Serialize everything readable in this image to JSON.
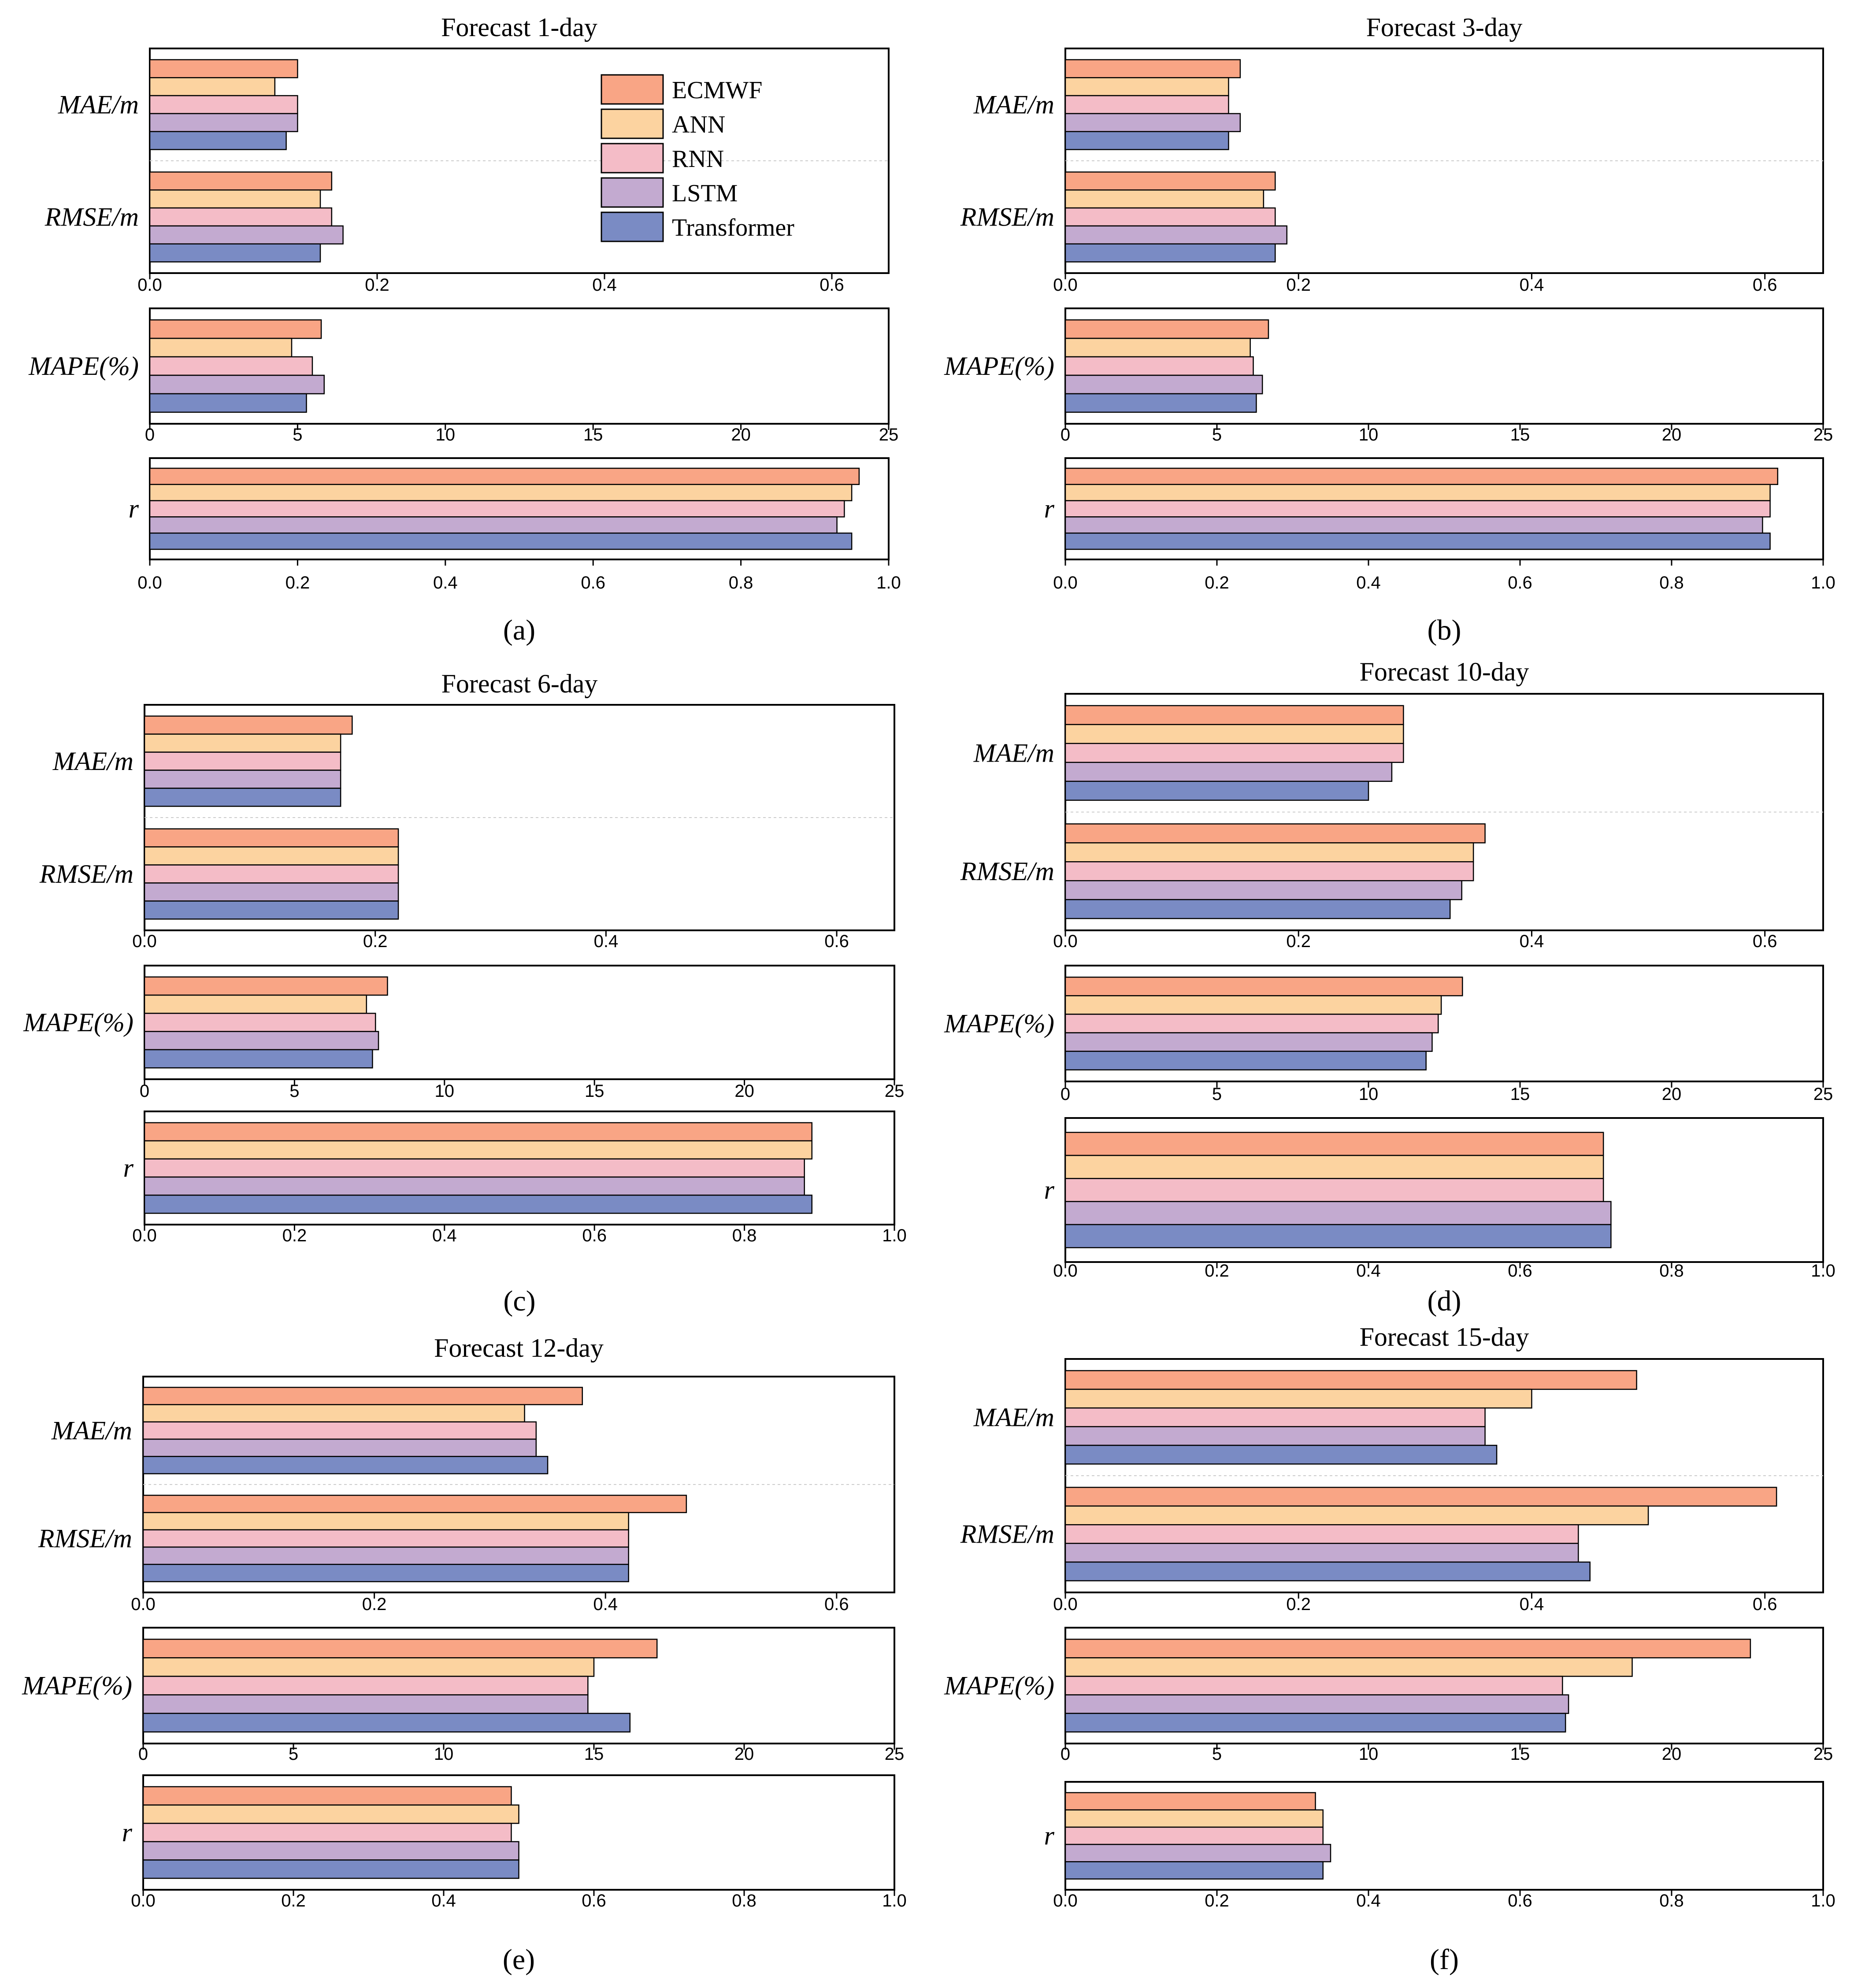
{
  "figure": {
    "panel_letters": [
      "(a)",
      "(b)",
      "(c)",
      "(d)",
      "(e)",
      "(f)"
    ]
  },
  "legend": {
    "entries": [
      "ECMWF",
      "ANN",
      "RNN",
      "LSTM",
      "Transformer"
    ]
  },
  "series_colors": {
    "ECMWF": "#F9A585",
    "ANN": "#FCD3A0",
    "RNN": "#F4BCC7",
    "LSTM": "#C3AAD0",
    "Transformer": "#7A8BC4"
  },
  "chart_data": [
    {
      "type": "bar",
      "orientation": "horizontal",
      "title": "Forecast 1-day",
      "panel": "(a)",
      "series": [
        "ECMWF",
        "ANN",
        "RNN",
        "LSTM",
        "Transformer"
      ],
      "subplots": [
        {
          "metrics": [
            "MAE/m",
            "RMSE/m"
          ],
          "xlim": [
            0,
            0.65
          ],
          "xticks": [
            "0.0",
            "0.2",
            "0.4",
            "0.6"
          ],
          "values": {
            "MAE/m": [
              0.13,
              0.11,
              0.13,
              0.13,
              0.12
            ],
            "RMSE/m": [
              0.16,
              0.15,
              0.16,
              0.17,
              0.15
            ]
          }
        },
        {
          "metrics": [
            "MAPE(%)"
          ],
          "xlim": [
            0,
            25
          ],
          "xticks": [
            "0",
            "5",
            "10",
            "15",
            "20",
            "25"
          ],
          "values": {
            "MAPE(%)": [
              5.8,
              4.8,
              5.5,
              5.9,
              5.3
            ]
          }
        },
        {
          "metrics": [
            "r"
          ],
          "xlim": [
            0,
            1.0
          ],
          "xticks": [
            "0.0",
            "0.2",
            "0.4",
            "0.6",
            "0.8",
            "1.0"
          ],
          "values": {
            "r": [
              0.96,
              0.95,
              0.94,
              0.93,
              0.95
            ]
          }
        }
      ]
    },
    {
      "type": "bar",
      "orientation": "horizontal",
      "title": "Forecast 3-day",
      "panel": "(b)",
      "series": [
        "ECMWF",
        "ANN",
        "RNN",
        "LSTM",
        "Transformer"
      ],
      "subplots": [
        {
          "metrics": [
            "MAE/m",
            "RMSE/m"
          ],
          "xlim": [
            0,
            0.65
          ],
          "xticks": [
            "0.0",
            "0.2",
            "0.4",
            "0.6"
          ],
          "values": {
            "MAE/m": [
              0.15,
              0.14,
              0.14,
              0.15,
              0.14
            ],
            "RMSE/m": [
              0.18,
              0.17,
              0.18,
              0.19,
              0.18
            ]
          }
        },
        {
          "metrics": [
            "MAPE(%)"
          ],
          "xlim": [
            0,
            25
          ],
          "xticks": [
            "0",
            "5",
            "10",
            "15",
            "20",
            "25"
          ],
          "values": {
            "MAPE(%)": [
              6.7,
              6.1,
              6.2,
              6.5,
              6.3
            ]
          }
        },
        {
          "metrics": [
            "r"
          ],
          "xlim": [
            0,
            1.0
          ],
          "xticks": [
            "0.0",
            "0.2",
            "0.4",
            "0.6",
            "0.8",
            "1.0"
          ],
          "values": {
            "r": [
              0.94,
              0.93,
              0.93,
              0.92,
              0.93
            ]
          }
        }
      ]
    },
    {
      "type": "bar",
      "orientation": "horizontal",
      "title": "Forecast 6-day",
      "panel": "(c)",
      "series": [
        "ECMWF",
        "ANN",
        "RNN",
        "LSTM",
        "Transformer"
      ],
      "subplots": [
        {
          "metrics": [
            "MAE/m",
            "RMSE/m"
          ],
          "xlim": [
            0,
            0.65
          ],
          "xticks": [
            "0.0",
            "0.2",
            "0.4",
            "0.6"
          ],
          "values": {
            "MAE/m": [
              0.18,
              0.17,
              0.17,
              0.17,
              0.17
            ],
            "RMSE/m": [
              0.22,
              0.22,
              0.22,
              0.22,
              0.22
            ]
          }
        },
        {
          "metrics": [
            "MAPE(%)"
          ],
          "xlim": [
            0,
            25
          ],
          "xticks": [
            "0",
            "5",
            "10",
            "15",
            "20",
            "25"
          ],
          "values": {
            "MAPE(%)": [
              8.1,
              7.4,
              7.7,
              7.8,
              7.6
            ]
          }
        },
        {
          "metrics": [
            "r"
          ],
          "xlim": [
            0,
            1.0
          ],
          "xticks": [
            "0.0",
            "0.2",
            "0.4",
            "0.6",
            "0.8",
            "1.0"
          ],
          "values": {
            "r": [
              0.89,
              0.89,
              0.88,
              0.88,
              0.89
            ]
          }
        }
      ]
    },
    {
      "type": "bar",
      "orientation": "horizontal",
      "title": "Forecast 10-day",
      "panel": "(d)",
      "series": [
        "ECMWF",
        "ANN",
        "RNN",
        "LSTM",
        "Transformer"
      ],
      "subplots": [
        {
          "metrics": [
            "MAE/m",
            "RMSE/m"
          ],
          "xlim": [
            0,
            0.65
          ],
          "xticks": [
            "0.0",
            "0.2",
            "0.4",
            "0.6"
          ],
          "values": {
            "MAE/m": [
              0.29,
              0.29,
              0.29,
              0.28,
              0.26
            ],
            "RMSE/m": [
              0.36,
              0.35,
              0.35,
              0.34,
              0.33
            ]
          }
        },
        {
          "metrics": [
            "MAPE(%)"
          ],
          "xlim": [
            0,
            25
          ],
          "xticks": [
            "0",
            "5",
            "10",
            "15",
            "20",
            "25"
          ],
          "values": {
            "MAPE(%)": [
              13.1,
              12.4,
              12.3,
              12.1,
              11.9
            ]
          }
        },
        {
          "metrics": [
            "r"
          ],
          "xlim": [
            0,
            1.0
          ],
          "xticks": [
            "0.0",
            "0.2",
            "0.4",
            "0.6",
            "0.8",
            "1.0"
          ],
          "values": {
            "r": [
              0.71,
              0.71,
              0.71,
              0.72,
              0.72
            ]
          }
        }
      ]
    },
    {
      "type": "bar",
      "orientation": "horizontal",
      "title": "Forecast 12-day",
      "panel": "(e)",
      "series": [
        "ECMWF",
        "ANN",
        "RNN",
        "LSTM",
        "Transformer"
      ],
      "subplots": [
        {
          "metrics": [
            "MAE/m",
            "RMSE/m"
          ],
          "xlim": [
            0,
            0.65
          ],
          "xticks": [
            "0.0",
            "0.2",
            "0.4",
            "0.6"
          ],
          "values": {
            "MAE/m": [
              0.38,
              0.33,
              0.34,
              0.34,
              0.35
            ],
            "RMSE/m": [
              0.47,
              0.42,
              0.42,
              0.42,
              0.42
            ]
          }
        },
        {
          "metrics": [
            "MAPE(%)"
          ],
          "xlim": [
            0,
            25
          ],
          "xticks": [
            "0",
            "5",
            "10",
            "15",
            "20",
            "25"
          ],
          "values": {
            "MAPE(%)": [
              17.1,
              15.0,
              14.8,
              14.8,
              16.2
            ]
          }
        },
        {
          "metrics": [
            "r"
          ],
          "xlim": [
            0,
            1.0
          ],
          "xticks": [
            "0.0",
            "0.2",
            "0.4",
            "0.6",
            "0.8",
            "1.0"
          ],
          "values": {
            "r": [
              0.49,
              0.5,
              0.49,
              0.5,
              0.5
            ]
          }
        }
      ]
    },
    {
      "type": "bar",
      "orientation": "horizontal",
      "title": "Forecast 15-day",
      "panel": "(f)",
      "series": [
        "ECMWF",
        "ANN",
        "RNN",
        "LSTM",
        "Transformer"
      ],
      "subplots": [
        {
          "metrics": [
            "MAE/m",
            "RMSE/m"
          ],
          "xlim": [
            0,
            0.65
          ],
          "xticks": [
            "0.0",
            "0.2",
            "0.4",
            "0.6"
          ],
          "values": {
            "MAE/m": [
              0.49,
              0.4,
              0.36,
              0.36,
              0.37
            ],
            "RMSE/m": [
              0.61,
              0.5,
              0.44,
              0.44,
              0.45
            ]
          }
        },
        {
          "metrics": [
            "MAPE(%)"
          ],
          "xlim": [
            0,
            25
          ],
          "xticks": [
            "0",
            "5",
            "10",
            "15",
            "20",
            "25"
          ],
          "values": {
            "MAPE(%)": [
              22.6,
              18.7,
              16.4,
              16.6,
              16.5
            ]
          }
        },
        {
          "metrics": [
            "r"
          ],
          "xlim": [
            0,
            1.0
          ],
          "xticks": [
            "0.0",
            "0.2",
            "0.4",
            "0.6",
            "0.8",
            "1.0"
          ],
          "values": {
            "r": [
              0.33,
              0.34,
              0.34,
              0.35,
              0.34
            ]
          }
        }
      ]
    }
  ]
}
